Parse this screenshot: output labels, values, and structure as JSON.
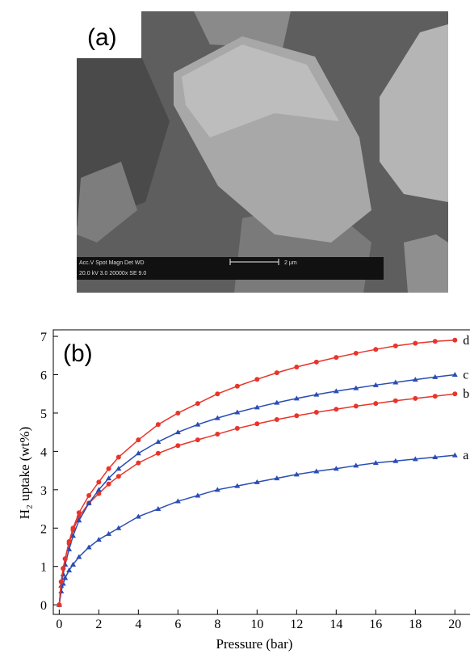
{
  "image_panel": {
    "label": "(a)",
    "info_top": "Acc.V  Spot Magn   Det  WD",
    "scale": "2 μm",
    "info_bottom": "20.0 kV 3.0   20000x   SE   9.0"
  },
  "chart_data": {
    "type": "line",
    "panel_label": "(b)",
    "x_label": "Pressure (bar)",
    "y_label": "H₂ uptake (wt%)",
    "x": [
      0,
      0.1,
      0.2,
      0.3,
      0.5,
      0.7,
      1,
      1.5,
      2,
      2.5,
      3,
      4,
      5,
      6,
      7,
      8,
      9,
      10,
      11,
      12,
      13,
      14,
      15,
      16,
      17,
      18,
      19,
      20
    ],
    "series": [
      {
        "name": "a",
        "color": "#2a4db5",
        "marker": "triangle",
        "values": [
          0,
          0.35,
          0.55,
          0.7,
          0.9,
          1.05,
          1.25,
          1.5,
          1.7,
          1.85,
          2.0,
          2.3,
          2.5,
          2.7,
          2.85,
          3.0,
          3.1,
          3.2,
          3.3,
          3.4,
          3.48,
          3.55,
          3.63,
          3.7,
          3.75,
          3.8,
          3.85,
          3.9
        ]
      },
      {
        "name": "b",
        "color": "#e8352a",
        "marker": "circle",
        "values": [
          0,
          0.6,
          0.95,
          1.2,
          1.6,
          1.95,
          2.3,
          2.65,
          2.9,
          3.15,
          3.35,
          3.7,
          3.95,
          4.15,
          4.3,
          4.45,
          4.6,
          4.72,
          4.83,
          4.93,
          5.02,
          5.1,
          5.18,
          5.25,
          5.32,
          5.38,
          5.44,
          5.5
        ]
      },
      {
        "name": "c",
        "color": "#2a4db5",
        "marker": "triangle",
        "values": [
          0,
          0.5,
          0.8,
          1.05,
          1.45,
          1.8,
          2.2,
          2.65,
          3.0,
          3.3,
          3.55,
          3.95,
          4.25,
          4.5,
          4.7,
          4.87,
          5.02,
          5.15,
          5.27,
          5.38,
          5.48,
          5.57,
          5.65,
          5.73,
          5.8,
          5.87,
          5.94,
          6.0
        ]
      },
      {
        "name": "d",
        "color": "#e8352a",
        "marker": "circle",
        "values": [
          0,
          0.6,
          0.95,
          1.2,
          1.65,
          2.0,
          2.4,
          2.85,
          3.2,
          3.55,
          3.85,
          4.3,
          4.7,
          5.0,
          5.25,
          5.5,
          5.7,
          5.88,
          6.05,
          6.2,
          6.33,
          6.45,
          6.56,
          6.66,
          6.75,
          6.82,
          6.87,
          6.9
        ]
      }
    ],
    "xlim": [
      -0.3,
      20.6
    ],
    "ylim": [
      -0.25,
      7.17
    ],
    "xticks": [
      0,
      2,
      4,
      6,
      8,
      10,
      12,
      14,
      16,
      18,
      20
    ],
    "yticks": [
      0,
      1,
      2,
      3,
      4,
      5,
      6,
      7
    ],
    "grid": false
  }
}
